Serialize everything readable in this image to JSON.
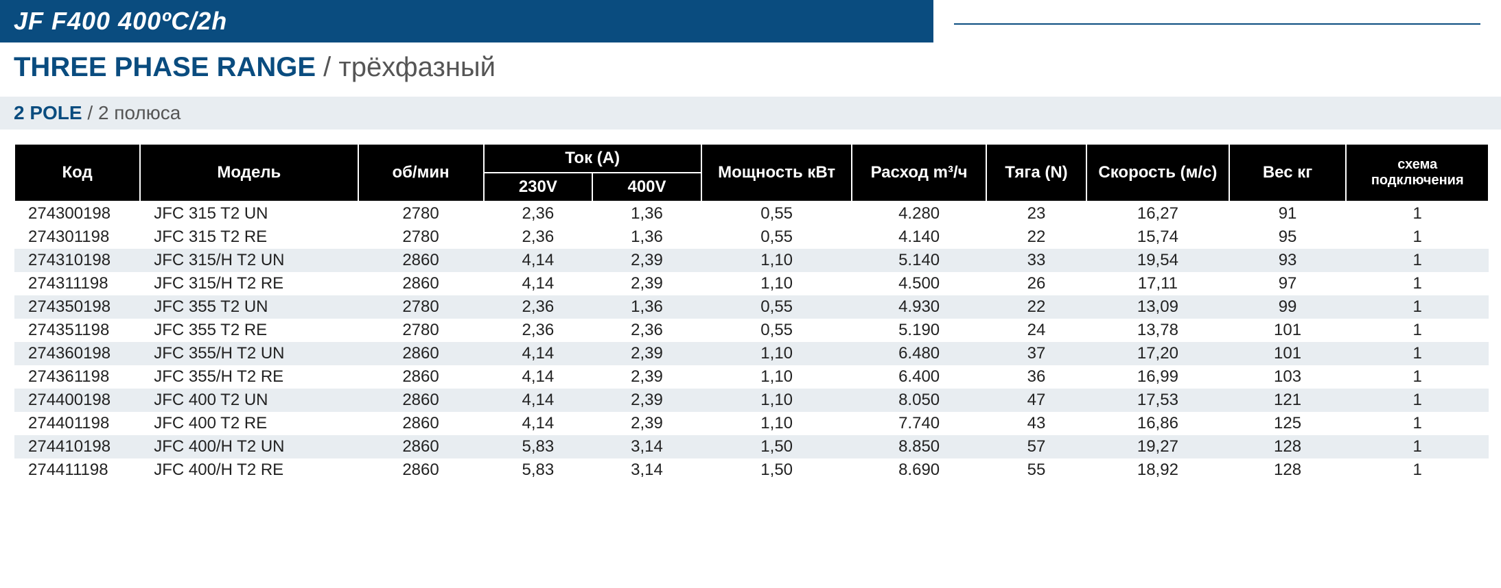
{
  "header": {
    "title": "JF F400 400ºC/2h"
  },
  "section": {
    "title_bold": "THREE PHASE RANGE",
    "title_separator": " / ",
    "title_reg": "трёхфазный"
  },
  "subsection": {
    "title_bold": "2 POLE",
    "title_separator": " / ",
    "title_reg": "2 полюса"
  },
  "table": {
    "columns": {
      "code": "Код",
      "model": "Модель",
      "rpm": "об/мин",
      "current": "Ток (А)",
      "v230": "230V",
      "v400": "400V",
      "power": "Мощность кВт",
      "flow": "Расход m³/ч",
      "thrust": "Тяга (N)",
      "speed": "Скорость (м/с)",
      "weight": "Вес кг",
      "scheme": "схема подключения"
    },
    "rows": [
      {
        "code": "274300198",
        "model": "JFC 315 T2 UN",
        "rpm": "2780",
        "v230": "2,36",
        "v400": "1,36",
        "power": "0,55",
        "flow": "4.280",
        "thrust": "23",
        "speed": "16,27",
        "weight": "91",
        "scheme": "1",
        "alt": false
      },
      {
        "code": "274301198",
        "model": "JFC 315 T2 RE",
        "rpm": "2780",
        "v230": "2,36",
        "v400": "1,36",
        "power": "0,55",
        "flow": "4.140",
        "thrust": "22",
        "speed": "15,74",
        "weight": "95",
        "scheme": "1",
        "alt": false
      },
      {
        "code": "274310198",
        "model": "JFC 315/H T2 UN",
        "rpm": "2860",
        "v230": "4,14",
        "v400": "2,39",
        "power": "1,10",
        "flow": "5.140",
        "thrust": "33",
        "speed": "19,54",
        "weight": "93",
        "scheme": "1",
        "alt": true
      },
      {
        "code": "274311198",
        "model": "JFC 315/H T2 RE",
        "rpm": "2860",
        "v230": "4,14",
        "v400": "2,39",
        "power": "1,10",
        "flow": "4.500",
        "thrust": "26",
        "speed": "17,11",
        "weight": "97",
        "scheme": "1",
        "alt": false
      },
      {
        "code": "274350198",
        "model": "JFC 355 T2 UN",
        "rpm": "2780",
        "v230": "2,36",
        "v400": "1,36",
        "power": "0,55",
        "flow": "4.930",
        "thrust": "22",
        "speed": "13,09",
        "weight": "99",
        "scheme": "1",
        "alt": true
      },
      {
        "code": "274351198",
        "model": "JFC 355 T2 RE",
        "rpm": "2780",
        "v230": "2,36",
        "v400": "2,36",
        "power": "0,55",
        "flow": "5.190",
        "thrust": "24",
        "speed": "13,78",
        "weight": "101",
        "scheme": "1",
        "alt": false
      },
      {
        "code": "274360198",
        "model": "JFC 355/H T2 UN",
        "rpm": "2860",
        "v230": "4,14",
        "v400": "2,39",
        "power": "1,10",
        "flow": "6.480",
        "thrust": "37",
        "speed": "17,20",
        "weight": "101",
        "scheme": "1",
        "alt": true
      },
      {
        "code": "274361198",
        "model": "JFC 355/H T2 RE",
        "rpm": "2860",
        "v230": "4,14",
        "v400": "2,39",
        "power": "1,10",
        "flow": "6.400",
        "thrust": "36",
        "speed": "16,99",
        "weight": "103",
        "scheme": "1",
        "alt": false
      },
      {
        "code": "274400198",
        "model": "JFC 400 T2 UN",
        "rpm": "2860",
        "v230": "4,14",
        "v400": "2,39",
        "power": "1,10",
        "flow": "8.050",
        "thrust": "47",
        "speed": "17,53",
        "weight": "121",
        "scheme": "1",
        "alt": true
      },
      {
        "code": "274401198",
        "model": "JFC 400 T2 RE",
        "rpm": "2860",
        "v230": "4,14",
        "v400": "2,39",
        "power": "1,10",
        "flow": "7.740",
        "thrust": "43",
        "speed": "16,86",
        "weight": "125",
        "scheme": "1",
        "alt": false
      },
      {
        "code": "274410198",
        "model": "JFC 400/H T2 UN",
        "rpm": "2860",
        "v230": "5,83",
        "v400": "3,14",
        "power": "1,50",
        "flow": "8.850",
        "thrust": "57",
        "speed": "19,27",
        "weight": "128",
        "scheme": "1",
        "alt": true
      },
      {
        "code": "274411198",
        "model": "JFC 400/H T2 RE",
        "rpm": "2860",
        "v230": "5,83",
        "v400": "3,14",
        "power": "1,50",
        "flow": "8.690",
        "thrust": "55",
        "speed": "18,92",
        "weight": "128",
        "scheme": "1",
        "alt": false
      }
    ],
    "colors": {
      "header_bg": "#000000",
      "header_text": "#ffffff",
      "alt_row_bg": "#e8edf1",
      "row_bg": "#ffffff",
      "text": "#222222",
      "border": "#ffffff"
    },
    "font_sizes": {
      "header": 24,
      "header_small": 20,
      "body": 24
    }
  },
  "styling": {
    "header_bar_bg": "#0a4c7f",
    "header_bar_text": "#ffffff",
    "header_bar_fontsize": 36,
    "section_title_color_bold": "#0a4c7f",
    "section_title_color_reg": "#555555",
    "section_title_fontsize": 40,
    "subheader_bg": "#e8edf1",
    "subheader_fontsize": 28
  }
}
